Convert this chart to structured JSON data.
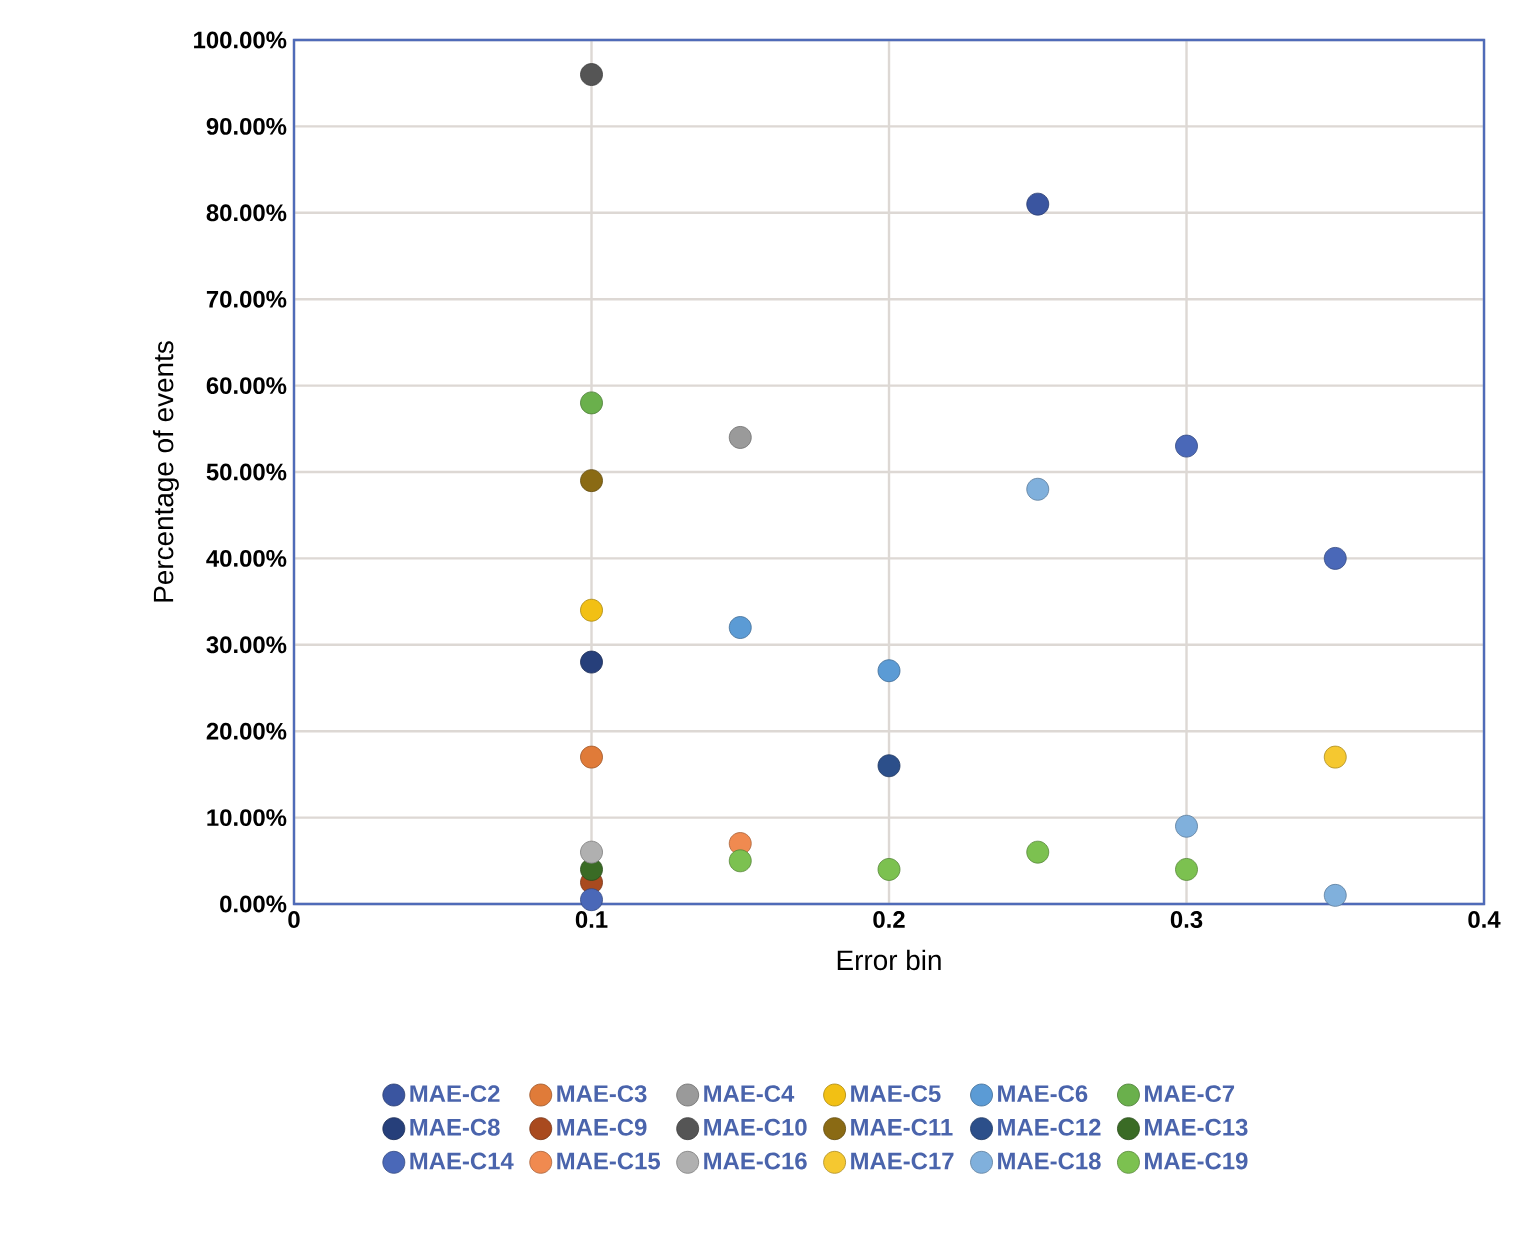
{
  "chart_data": {
    "type": "scatter",
    "xlabel": "Error bin",
    "ylabel": "Percentage of events",
    "xlim": [
      0,
      0.4
    ],
    "xticks": [
      0,
      0.1,
      0.2,
      0.3,
      0.4
    ],
    "ylim": [
      0,
      1
    ],
    "yticks": [
      {
        "value": 0,
        "label": "0.00%"
      },
      {
        "value": 0.1,
        "label": "10.00%"
      },
      {
        "value": 0.2,
        "label": "20.00%"
      },
      {
        "value": 0.3,
        "label": "30.00%"
      },
      {
        "value": 0.4,
        "label": "40.00%"
      },
      {
        "value": 0.5,
        "label": "50.00%"
      },
      {
        "value": 0.6,
        "label": "60.00%"
      },
      {
        "value": 0.7,
        "label": "70.00%"
      },
      {
        "value": 0.8,
        "label": "80.00%"
      },
      {
        "value": 0.9,
        "label": "90.00%"
      },
      {
        "value": 1,
        "label": "100.00%"
      }
    ],
    "grid": true,
    "legend": "bottom",
    "marker": "circle",
    "series": [
      {
        "name": "MAE-C2",
        "color": "#3a55a0",
        "x": [
          0.25
        ],
        "values": [
          0.81
        ]
      },
      {
        "name": "MAE-C3",
        "color": "#e07b39",
        "x": [
          0.1
        ],
        "values": [
          0.17
        ]
      },
      {
        "name": "MAE-C4",
        "color": "#9a9a9a",
        "x": [
          0.15
        ],
        "values": [
          0.54
        ]
      },
      {
        "name": "MAE-C5",
        "color": "#f2c014",
        "x": [
          0.1
        ],
        "values": [
          0.34
        ]
      },
      {
        "name": "MAE-C6",
        "color": "#5b9bd5",
        "x": [
          0.15,
          0.2
        ],
        "values": [
          0.32,
          0.27
        ]
      },
      {
        "name": "MAE-C7",
        "color": "#6ab04c",
        "x": [
          0.1
        ],
        "values": [
          0.58
        ]
      },
      {
        "name": "MAE-C8",
        "color": "#263f7a",
        "x": [
          0.1
        ],
        "values": [
          0.28
        ]
      },
      {
        "name": "MAE-C9",
        "color": "#a94a1f",
        "x": [
          0.1
        ],
        "values": [
          0.025
        ]
      },
      {
        "name": "MAE-C10",
        "color": "#555555",
        "x": [
          0.1
        ],
        "values": [
          0.96
        ]
      },
      {
        "name": "MAE-C11",
        "color": "#8a6a14",
        "x": [
          0.1
        ],
        "values": [
          0.49
        ]
      },
      {
        "name": "MAE-C12",
        "color": "#2c4f8a",
        "x": [
          0.2
        ],
        "values": [
          0.16
        ]
      },
      {
        "name": "MAE-C13",
        "color": "#3a6b25",
        "x": [
          0.1
        ],
        "values": [
          0.04
        ]
      },
      {
        "name": "MAE-C14",
        "color": "#4a68b8",
        "x": [
          0.1,
          0.3,
          0.35
        ],
        "values": [
          0.005,
          0.53,
          0.4
        ]
      },
      {
        "name": "MAE-C15",
        "color": "#f08a50",
        "x": [
          0.15
        ],
        "values": [
          0.07
        ]
      },
      {
        "name": "MAE-C16",
        "color": "#b0b0b0",
        "x": [
          0.1
        ],
        "values": [
          0.06
        ]
      },
      {
        "name": "MAE-C17",
        "color": "#f5c830",
        "x": [
          0.35
        ],
        "values": [
          0.17
        ]
      },
      {
        "name": "MAE-C18",
        "color": "#80b0dc",
        "x": [
          0.25,
          0.3,
          0.35
        ],
        "values": [
          0.48,
          0.09,
          0.01
        ]
      },
      {
        "name": "MAE-C19",
        "color": "#7cc150",
        "x": [
          0.15,
          0.2,
          0.25,
          0.3
        ],
        "values": [
          0.05,
          0.04,
          0.06,
          0.04
        ]
      }
    ]
  }
}
